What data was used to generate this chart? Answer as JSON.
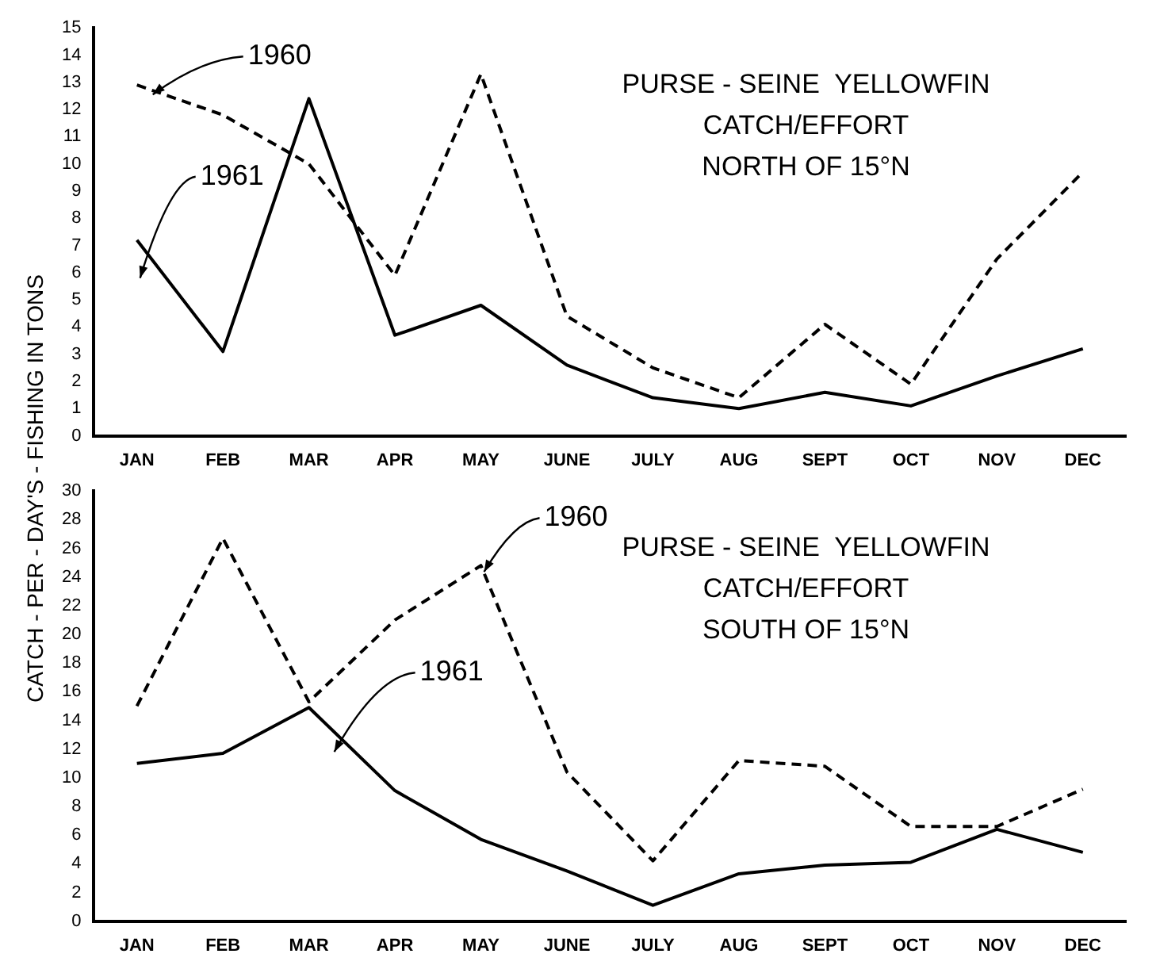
{
  "chart_data": [
    {
      "type": "line",
      "title": "PURSE - SEINE  YELLOWFIN",
      "subtitle": "CATCH/EFFORT",
      "annotations": [
        "NORTH OF 15°N"
      ],
      "ylabel": "CATCH - PER - DAY'S - FISHING IN TONS",
      "categories": [
        "JAN",
        "FEB",
        "MAR",
        "APR",
        "MAY",
        "JUNE",
        "JULY",
        "AUG",
        "SEPT",
        "OCT",
        "NOV",
        "DEC"
      ],
      "series": [
        {
          "name": "1960",
          "color": "#000000",
          "line_style": "dashed",
          "values": [
            12.9,
            11.8,
            10.0,
            5.9,
            13.3,
            4.4,
            2.5,
            1.4,
            4.1,
            1.9,
            6.5,
            9.7
          ]
        },
        {
          "name": "1961",
          "color": "#000000",
          "line_style": "solid",
          "values": [
            7.2,
            3.1,
            12.4,
            3.7,
            4.8,
            2.6,
            1.4,
            1.0,
            1.6,
            1.1,
            2.2,
            3.2
          ]
        }
      ],
      "ylim": [
        0,
        15
      ],
      "yticks": [
        0,
        1,
        2,
        3,
        4,
        5,
        6,
        7,
        8,
        9,
        10,
        11,
        12,
        13,
        14,
        15
      ],
      "grid": false,
      "legend": false,
      "marker": "none"
    },
    {
      "type": "line",
      "title": "PURSE - SEINE  YELLOWFIN",
      "subtitle": "CATCH/EFFORT",
      "annotations": [
        "SOUTH OF 15°N"
      ],
      "categories": [
        "JAN",
        "FEB",
        "MAR",
        "APR",
        "MAY",
        "JUNE",
        "JULY",
        "AUG",
        "SEPT",
        "OCT",
        "NOV",
        "DEC"
      ],
      "series": [
        {
          "name": "1960",
          "color": "#000000",
          "line_style": "dashed",
          "values": [
            15,
            26.7,
            15.3,
            21,
            24.8,
            10.4,
            4.2,
            11.2,
            10.8,
            6.6,
            6.6,
            9.2
          ]
        },
        {
          "name": "1961",
          "color": "#000000",
          "line_style": "solid",
          "values": [
            11,
            11.7,
            14.9,
            9.1,
            5.7,
            3.5,
            1.1,
            3.3,
            3.9,
            4.1,
            6.4,
            4.8
          ]
        }
      ],
      "ylim": [
        0,
        30
      ],
      "yticks": [
        0,
        2,
        4,
        6,
        8,
        10,
        12,
        14,
        16,
        18,
        20,
        22,
        24,
        26,
        28,
        30
      ],
      "grid": false,
      "legend": false,
      "marker": "none"
    }
  ]
}
